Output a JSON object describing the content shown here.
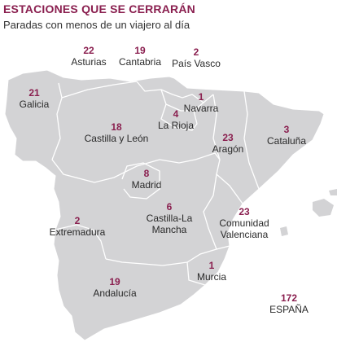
{
  "title": "ESTACIONES QUE SE CERRARÁN",
  "subtitle": "Paradas con menos de un viajero al día",
  "colors": {
    "accent": "#8a1f4f",
    "land": "#d3d3d5",
    "border": "#ffffff",
    "text": "#2a2a2a"
  },
  "regions": [
    {
      "name": "Galicia",
      "count": "21"
    },
    {
      "name": "Asturias",
      "count": "22"
    },
    {
      "name": "Cantabria",
      "count": "19"
    },
    {
      "name": "País Vasco",
      "count": "2"
    },
    {
      "name": "Navarra",
      "count": "1"
    },
    {
      "name": "La Rioja",
      "count": "4"
    },
    {
      "name": "Castilla y León",
      "count": "18"
    },
    {
      "name": "Aragón",
      "count": "23"
    },
    {
      "name": "Cataluña",
      "count": "3"
    },
    {
      "name": "Madrid",
      "count": "8"
    },
    {
      "name": "Castilla-La Mancha",
      "count": "6",
      "name_lines": [
        "Castilla-La",
        "Mancha"
      ]
    },
    {
      "name": "Extremadura",
      "count": "2"
    },
    {
      "name": "Comunidad Valenciana",
      "count": "23",
      "name_lines": [
        "Comunidad",
        "Valenciana"
      ]
    },
    {
      "name": "Murcia",
      "count": "1"
    },
    {
      "name": "Andalucía",
      "count": "19"
    }
  ],
  "total": {
    "label": "ESPAÑA",
    "count": "172"
  }
}
